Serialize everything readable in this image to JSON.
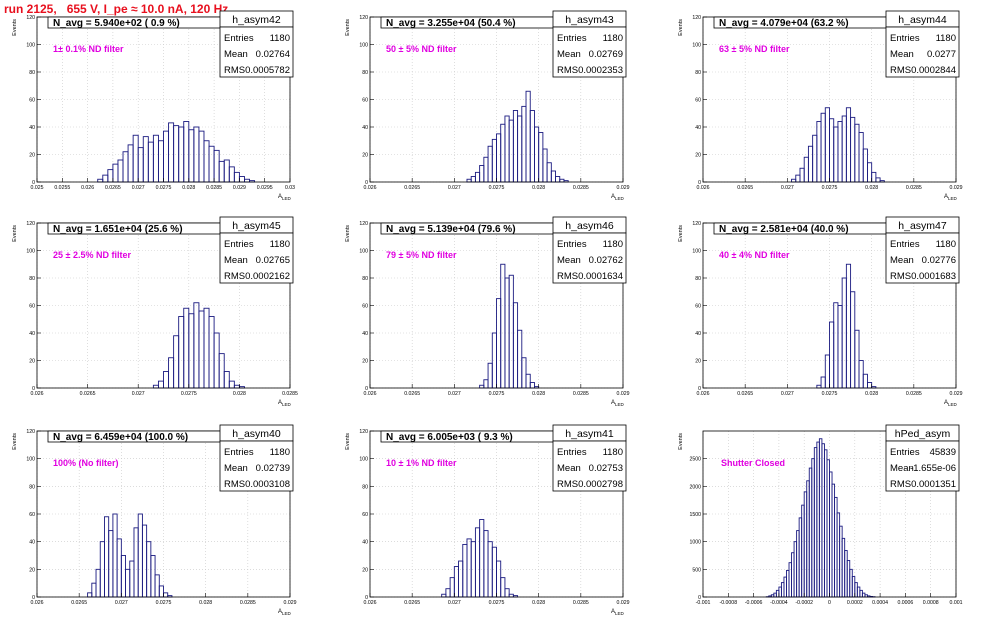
{
  "page": {
    "title": "run 2125,   655 V, I_pe ≈ 10.0 nA, 120 Hz",
    "colors": {
      "title": "#e8101e",
      "note": "#e000e0",
      "hist": "#1a1a80",
      "frame": "#000000",
      "grid": "#c8c8c8"
    }
  },
  "chart_data": [
    {
      "type": "bar",
      "name": "h_asym42",
      "header": "N_avg = 5.940e+02 ( 0.9 %)",
      "note": "1± 0.1% ND filter",
      "stats": [
        [
          "Entries",
          "1180"
        ],
        [
          "Mean",
          "0.02764"
        ],
        [
          "RMS",
          "0.0005782"
        ]
      ],
      "ylabel": "Events",
      "xlabel": "A_LED",
      "xlim": [
        0.025,
        0.03
      ],
      "ylim": [
        0,
        120
      ],
      "xticks": [
        "0.025",
        "0.0255",
        "0.026",
        "0.0265",
        "0.027",
        "0.0275",
        "0.028",
        "0.0285",
        "0.029",
        "0.0295",
        "0.03"
      ],
      "yticks": [
        "0",
        "20",
        "40",
        "60",
        "80",
        "100",
        "120"
      ],
      "x_start": 0.0262,
      "bin": 0.0001,
      "values": [
        2,
        5,
        9,
        13,
        16,
        22,
        27,
        34,
        25,
        33,
        29,
        34,
        30,
        37,
        43,
        41,
        40,
        44,
        38,
        40,
        37,
        30,
        26,
        23,
        15,
        16,
        11,
        7,
        4,
        2,
        1
      ]
    },
    {
      "type": "bar",
      "name": "h_asym43",
      "header": "N_avg = 3.255e+04 (50.4 %)",
      "note": "50 ± 5% ND filter",
      "stats": [
        [
          "Entries",
          "1180"
        ],
        [
          "Mean",
          "0.02769"
        ],
        [
          "RMS",
          "0.0002353"
        ]
      ],
      "ylabel": "Events",
      "xlabel": "A_LED",
      "xlim": [
        0.026,
        0.029
      ],
      "ylim": [
        0,
        120
      ],
      "xticks": [
        "0.026",
        "0.0265",
        "0.027",
        "0.0275",
        "0.028",
        "0.0285",
        "0.029"
      ],
      "yticks": [
        "0",
        "20",
        "40",
        "60",
        "80",
        "100",
        "120"
      ],
      "x_start": 0.02715,
      "bin": 5e-05,
      "values": [
        2,
        4,
        7,
        12,
        18,
        26,
        31,
        35,
        42,
        48,
        45,
        52,
        48,
        55,
        66,
        52,
        40,
        36,
        24,
        14,
        8,
        4,
        2,
        1
      ]
    },
    {
      "type": "bar",
      "name": "h_asym44",
      "header": "N_avg = 4.079e+04 (63.2 %)",
      "note": "63 ± 5% ND filter",
      "stats": [
        [
          "Entries",
          "1180"
        ],
        [
          "Mean",
          "0.0277"
        ],
        [
          "RMS",
          "0.0002844"
        ]
      ],
      "ylabel": "Events",
      "xlabel": "A_LED",
      "xlim": [
        0.026,
        0.029
      ],
      "ylim": [
        0,
        120
      ],
      "xticks": [
        "0.026",
        "0.0265",
        "0.027",
        "0.0275",
        "0.028",
        "0.0285",
        "0.029"
      ],
      "yticks": [
        "0",
        "20",
        "40",
        "60",
        "80",
        "100",
        "120"
      ],
      "x_start": 0.02705,
      "bin": 5e-05,
      "values": [
        2,
        5,
        10,
        18,
        26,
        34,
        44,
        50,
        54,
        46,
        40,
        44,
        48,
        54,
        47,
        42,
        36,
        24,
        14,
        7,
        3,
        1
      ]
    },
    {
      "type": "bar",
      "name": "h_asym45",
      "header": "N_avg = 1.651e+04 (25.6 %)",
      "note": "25 ± 2.5% ND filter",
      "stats": [
        [
          "Entries",
          "1180"
        ],
        [
          "Mean",
          "0.02765"
        ],
        [
          "RMS",
          "0.0002162"
        ]
      ],
      "ylabel": "Events",
      "xlabel": "A_LED",
      "xlim": [
        0.026,
        0.0285
      ],
      "ylim": [
        0,
        120
      ],
      "xticks": [
        "0.026",
        "0.0265",
        "0.027",
        "0.0275",
        "0.028",
        "0.0285"
      ],
      "yticks": [
        "0",
        "20",
        "40",
        "60",
        "80",
        "100",
        "120"
      ],
      "x_start": 0.02715,
      "bin": 5e-05,
      "values": [
        2,
        5,
        12,
        22,
        38,
        52,
        58,
        54,
        62,
        56,
        58,
        52,
        40,
        25,
        12,
        5,
        2,
        1
      ]
    },
    {
      "type": "bar",
      "name": "h_asym46",
      "header": "N_avg = 5.139e+04 (79.6 %)",
      "note": "79 ± 5% ND filter",
      "stats": [
        [
          "Entries",
          "1180"
        ],
        [
          "Mean",
          "0.02762"
        ],
        [
          "RMS",
          "0.0001634"
        ]
      ],
      "ylabel": "Events",
      "xlabel": "A_LED",
      "xlim": [
        0.026,
        0.029
      ],
      "ylim": [
        0,
        120
      ],
      "xticks": [
        "0.026",
        "0.0265",
        "0.027",
        "0.0275",
        "0.028",
        "0.0285",
        "0.029"
      ],
      "yticks": [
        "0",
        "20",
        "40",
        "60",
        "80",
        "100",
        "120"
      ],
      "x_start": 0.0273,
      "bin": 5e-05,
      "values": [
        2,
        6,
        18,
        40,
        65,
        90,
        80,
        82,
        62,
        42,
        22,
        10,
        4,
        1
      ]
    },
    {
      "type": "bar",
      "name": "h_asym47",
      "header": "N_avg = 2.581e+04 (40.0 %)",
      "note": "40 ± 4% ND filter",
      "stats": [
        [
          "Entries",
          "1180"
        ],
        [
          "Mean",
          "0.02776"
        ],
        [
          "RMS",
          "0.0001683"
        ]
      ],
      "ylabel": "Events",
      "xlabel": "A_LED",
      "xlim": [
        0.026,
        0.029
      ],
      "ylim": [
        0,
        120
      ],
      "xticks": [
        "0.026",
        "0.0265",
        "0.027",
        "0.0275",
        "0.028",
        "0.0285",
        "0.029"
      ],
      "yticks": [
        "0",
        "20",
        "40",
        "60",
        "80",
        "100",
        "120"
      ],
      "x_start": 0.02735,
      "bin": 5e-05,
      "values": [
        2,
        8,
        24,
        48,
        62,
        60,
        80,
        90,
        70,
        42,
        20,
        10,
        4,
        1
      ]
    },
    {
      "type": "bar",
      "name": "h_asym40",
      "header": "N_avg = 6.459e+04 (100.0 %)",
      "note": "100% (No filter)",
      "stats": [
        [
          "Entries",
          "1180"
        ],
        [
          "Mean",
          "0.02739"
        ],
        [
          "RMS",
          "0.0003108"
        ]
      ],
      "ylabel": "Events",
      "xlabel": "A_LED",
      "xlim": [
        0.026,
        0.029
      ],
      "ylim": [
        0,
        120
      ],
      "xticks": [
        "0.026",
        "0.0265",
        "0.027",
        "0.0275",
        "0.028",
        "0.0285",
        "0.029"
      ],
      "yticks": [
        "0",
        "20",
        "40",
        "60",
        "80",
        "100",
        "120"
      ],
      "x_start": 0.0266,
      "bin": 5e-05,
      "values": [
        3,
        10,
        20,
        40,
        58,
        48,
        60,
        42,
        30,
        20,
        26,
        50,
        60,
        52,
        40,
        30,
        16,
        8,
        3,
        1
      ]
    },
    {
      "type": "bar",
      "name": "h_asym41",
      "header": "N_avg = 6.005e+03 ( 9.3 %)",
      "note": "10 ± 1% ND filter",
      "stats": [
        [
          "Entries",
          "1180"
        ],
        [
          "Mean",
          "0.02753"
        ],
        [
          "RMS",
          "0.0002798"
        ]
      ],
      "ylabel": "Events",
      "xlabel": "A_LED",
      "xlim": [
        0.026,
        0.029
      ],
      "ylim": [
        0,
        120
      ],
      "xticks": [
        "0.026",
        "0.0265",
        "0.027",
        "0.0275",
        "0.028",
        "0.0285",
        "0.029"
      ],
      "yticks": [
        "0",
        "20",
        "40",
        "60",
        "80",
        "100",
        "120"
      ],
      "x_start": 0.02685,
      "bin": 5e-05,
      "values": [
        2,
        6,
        14,
        22,
        26,
        38,
        42,
        40,
        50,
        56,
        48,
        40,
        36,
        26,
        14,
        6,
        2,
        1
      ]
    },
    {
      "type": "bar",
      "name": "hPed_asym",
      "header": "",
      "note": "Shutter Closed",
      "stats": [
        [
          "Entries",
          "45839"
        ],
        [
          "Mean",
          "-1.655e-06"
        ],
        [
          "RMS",
          "0.0001351"
        ]
      ],
      "ylabel": "Events",
      "xlabel": "",
      "xlim": [
        -0.001,
        0.001
      ],
      "ylim": [
        0,
        3000
      ],
      "xticks": [
        "-0.001",
        "-0.0008",
        "-0.0006",
        "-0.0004",
        "-0.0002",
        "0",
        "0.0002",
        "0.0004",
        "0.0006",
        "0.0008",
        "0.001"
      ],
      "yticks": [
        "0",
        "500",
        "1000",
        "1500",
        "2000",
        "2500"
      ],
      "x_start": -0.0005,
      "bin": 2e-05,
      "values": [
        5,
        20,
        40,
        70,
        120,
        180,
        260,
        360,
        480,
        620,
        800,
        1000,
        1200,
        1430,
        1660,
        1900,
        2100,
        2330,
        2500,
        2700,
        2800,
        2860,
        2770,
        2660,
        2480,
        2260,
        2040,
        1800,
        1520,
        1280,
        1060,
        840,
        660,
        500,
        370,
        260,
        180,
        120,
        70,
        40,
        20,
        10,
        5
      ]
    }
  ]
}
